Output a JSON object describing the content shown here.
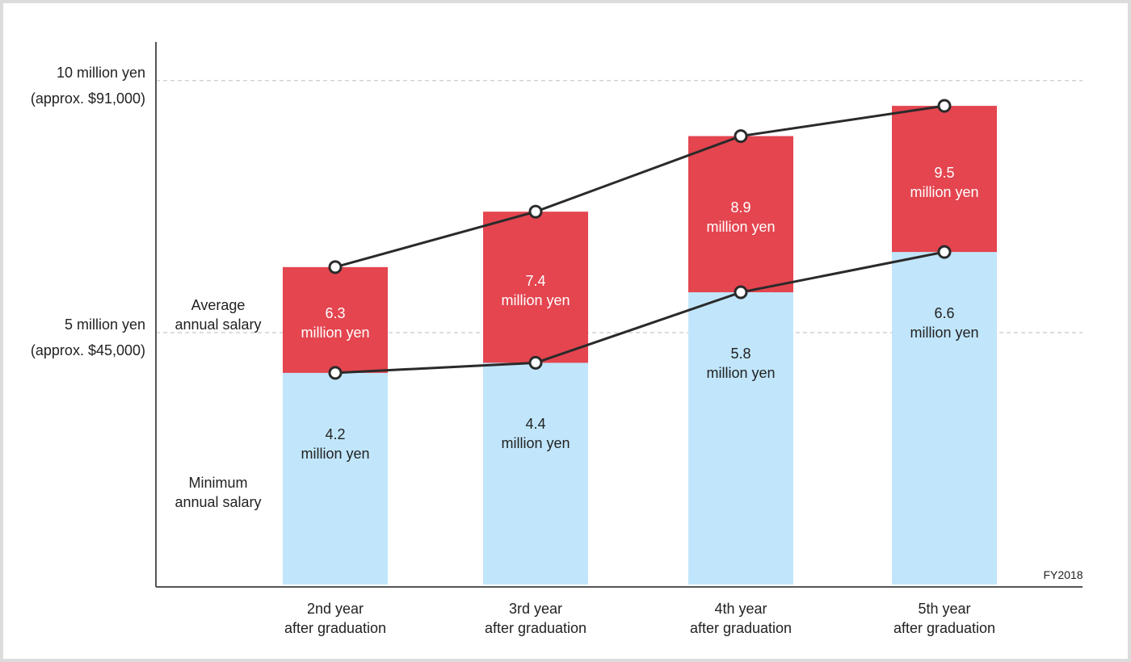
{
  "chart_data": {
    "type": "bar",
    "categories": [
      "2nd year\nafter graduation",
      "3rd year\nafter graduation",
      "4th year\nafter graduation",
      "5th year\nafter graduation"
    ],
    "series": [
      {
        "name": "Average\nannual salary",
        "color": "#e4454f",
        "values": [
          6.3,
          7.4,
          8.9,
          9.5
        ],
        "value_labels": [
          "6.3\nmillion yen",
          "7.4\nmillion yen",
          "8.9\nmillion yen",
          "9.5\nmillion yen"
        ]
      },
      {
        "name": "Minimum\nannual salary",
        "color": "#c1e6fb",
        "values": [
          4.2,
          4.4,
          5.8,
          6.6
        ],
        "value_labels": [
          "4.2\nmillion yen",
          "4.4\nmillion yen",
          "5.8\nmillion yen",
          "6.6\nmillion yen"
        ]
      }
    ],
    "ylim": [
      0,
      10.8
    ],
    "yticks": [
      {
        "value": 5,
        "label": "5 million yen"
      },
      {
        "value": 10,
        "label": "10 million yen"
      }
    ],
    "ytick_notes": [
      "(approx. $45,000)",
      "(approx. $91,000)"
    ],
    "grid": true,
    "footnote": "FY2018"
  }
}
